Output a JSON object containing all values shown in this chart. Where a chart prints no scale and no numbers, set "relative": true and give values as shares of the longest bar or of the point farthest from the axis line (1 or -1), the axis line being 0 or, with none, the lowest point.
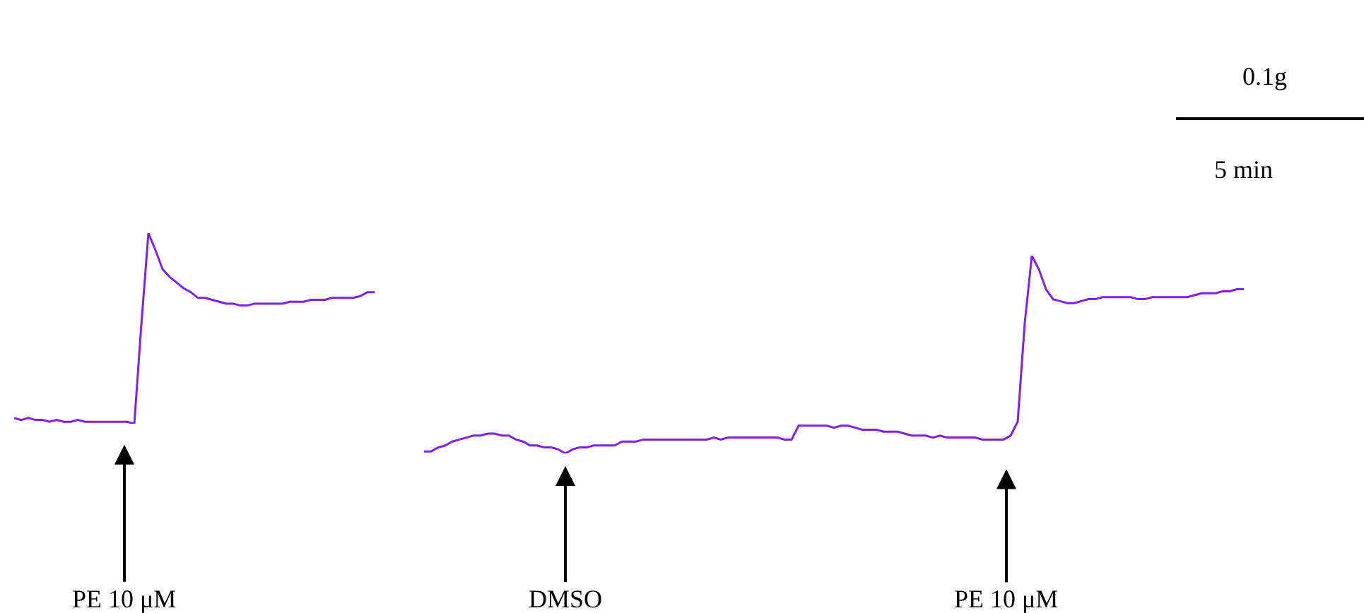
{
  "chart_data": [
    {
      "type": "line",
      "relative": true,
      "marker": "none",
      "line_style": "solid",
      "categories": [
        null,
        null,
        null,
        null,
        null,
        null,
        null,
        null,
        null,
        null,
        null,
        null,
        null,
        null,
        null,
        null,
        null,
        null,
        null,
        null,
        null,
        null,
        null,
        null,
        null,
        null,
        null,
        null,
        null,
        null,
        null,
        null,
        null,
        null,
        null,
        null,
        null,
        null,
        null,
        null,
        null,
        null,
        null,
        null,
        null,
        null,
        null,
        null,
        null,
        null,
        null,
        null
      ],
      "series": [
        {
          "color": "#8020f0",
          "values": [
            0.03,
            0.02,
            0.03,
            0.02,
            0.02,
            0.01,
            0.02,
            0.01,
            0.01,
            0.02,
            0.01,
            0.01,
            0.01,
            0.01,
            0.01,
            0.01,
            0.01,
            0,
            0.52,
            1,
            0.91,
            0.81,
            0.77,
            0.74,
            0.71,
            0.69,
            0.66,
            0.66,
            0.65,
            0.64,
            0.63,
            0.63,
            0.62,
            0.62,
            0.63,
            0.63,
            0.63,
            0.63,
            0.63,
            0.64,
            0.64,
            0.64,
            0.65,
            0.65,
            0.65,
            0.66,
            0.66,
            0.66,
            0.66,
            0.67,
            0.69,
            0.69
          ]
        }
      ],
      "annotations": [
        "PE 10 μM"
      ]
    },
    {
      "type": "line",
      "relative": true,
      "marker": "none",
      "line_style": "solid",
      "categories": [
        null,
        null,
        null,
        null,
        null,
        null,
        null,
        null,
        null,
        null,
        null,
        null,
        null,
        null,
        null,
        null,
        null,
        null,
        null,
        null,
        null,
        null,
        null,
        null,
        null,
        null,
        null,
        null,
        null,
        null,
        null,
        null,
        null,
        null,
        null,
        null,
        null,
        null,
        null,
        null,
        null,
        null,
        null,
        null,
        null,
        null,
        null,
        null,
        null,
        null,
        null,
        null,
        null,
        null,
        null,
        null,
        null,
        null,
        null,
        null,
        null,
        null,
        null,
        null,
        null,
        null,
        null,
        null,
        null,
        null,
        null,
        null,
        null,
        null,
        null,
        null,
        null,
        null,
        null,
        null,
        null,
        null,
        null,
        null,
        null,
        null,
        null,
        null,
        null,
        null,
        null,
        null,
        null,
        null,
        null,
        null,
        null,
        null,
        null,
        null,
        null,
        null,
        null,
        null,
        null,
        null,
        null,
        null,
        null,
        null,
        null,
        null,
        null,
        null,
        null,
        null,
        null
      ],
      "series": [
        {
          "color": "#8020f0",
          "values": [
            0.01,
            0.01,
            0.03,
            0.04,
            0.06,
            0.07,
            0.08,
            0.09,
            0.09,
            0.1,
            0.1,
            0.09,
            0.09,
            0.07,
            0.06,
            0.04,
            0.04,
            0.03,
            0.03,
            0.02,
            0,
            0.02,
            0.03,
            0.03,
            0.04,
            0.04,
            0.04,
            0.04,
            0.06,
            0.06,
            0.06,
            0.07,
            0.07,
            0.07,
            0.07,
            0.07,
            0.07,
            0.07,
            0.07,
            0.07,
            0.07,
            0.08,
            0.07,
            0.08,
            0.08,
            0.08,
            0.08,
            0.08,
            0.08,
            0.08,
            0.08,
            0.07,
            0.07,
            0.14,
            0.14,
            0.14,
            0.14,
            0.14,
            0.13,
            0.14,
            0.14,
            0.13,
            0.12,
            0.12,
            0.12,
            0.11,
            0.11,
            0.11,
            0.1,
            0.09,
            0.09,
            0.09,
            0.08,
            0.09,
            0.08,
            0.08,
            0.08,
            0.08,
            0.08,
            0.07,
            0.07,
            0.07,
            0.07,
            0.09,
            0.16,
            0.66,
            1,
            0.93,
            0.83,
            0.78,
            0.77,
            0.76,
            0.76,
            0.77,
            0.78,
            0.78,
            0.79,
            0.79,
            0.79,
            0.79,
            0.79,
            0.78,
            0.78,
            0.79,
            0.79,
            0.79,
            0.79,
            0.79,
            0.79,
            0.8,
            0.81,
            0.81,
            0.81,
            0.82,
            0.82,
            0.83,
            0.83
          ]
        }
      ],
      "annotations": [
        "0.1g",
        "5 min",
        "DMSO",
        "PE 10 μM"
      ]
    }
  ]
}
